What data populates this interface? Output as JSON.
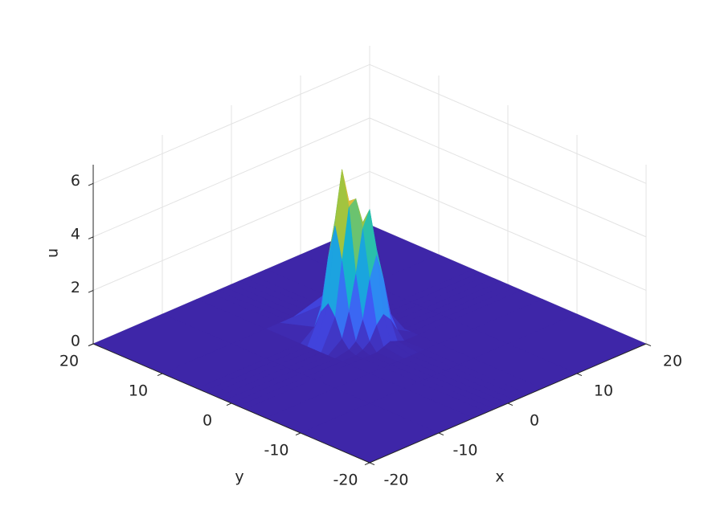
{
  "chart_data": {
    "type": "surface",
    "colormap": "parula",
    "grid": true,
    "xlabel": "x",
    "ylabel": "y",
    "zlabel": "u",
    "xlim": [
      -20,
      20
    ],
    "ylim": [
      -20,
      20
    ],
    "zlim": [
      0,
      6.7
    ],
    "xticks": [
      -20,
      -10,
      0,
      10,
      20
    ],
    "yticks": [
      -20,
      -10,
      0,
      10,
      20
    ],
    "zticks": [
      0,
      2,
      4,
      6
    ],
    "x": [
      -20,
      -10,
      -5,
      -3,
      -2,
      -1,
      0,
      1,
      2,
      3,
      5,
      10,
      20
    ],
    "y": [
      -20,
      -10,
      -5,
      -2,
      -1,
      0,
      1,
      2,
      3,
      4,
      5,
      10,
      20
    ],
    "z": [
      [
        0,
        0,
        0,
        0,
        0,
        0,
        0,
        0,
        0,
        0,
        0,
        0,
        0
      ],
      [
        0,
        0,
        0,
        0,
        0,
        0,
        0,
        0,
        0,
        0,
        0,
        0,
        0
      ],
      [
        0,
        0,
        0,
        0,
        0,
        0,
        0,
        0,
        0,
        0,
        0,
        0,
        0
      ],
      [
        0,
        0,
        0,
        0,
        0,
        0,
        0.1,
        0.2,
        0.1,
        0,
        0,
        0,
        0
      ],
      [
        0,
        0,
        0,
        0,
        0.1,
        0.3,
        0.8,
        1.1,
        0.8,
        0.3,
        0,
        0,
        0
      ],
      [
        0,
        0,
        0,
        0.1,
        0.3,
        1.0,
        2.4,
        3.2,
        2.2,
        0.8,
        0,
        0,
        0
      ],
      [
        0,
        0,
        0,
        0.4,
        1.3,
        2.6,
        4.2,
        4.8,
        3.2,
        1.1,
        0,
        0,
        0
      ],
      [
        0,
        0,
        0,
        1.1,
        3.1,
        5.0,
        5.2,
        4.2,
        2.4,
        0.8,
        0,
        0,
        0
      ],
      [
        0,
        0,
        0,
        1.5,
        4.3,
        6.3,
        5.0,
        2.6,
        1.0,
        0.3,
        0,
        0,
        0
      ],
      [
        0,
        0,
        0,
        1.1,
        3.0,
        4.3,
        3.1,
        1.3,
        0.3,
        0.1,
        0,
        0,
        0
      ],
      [
        0,
        0,
        0,
        0.4,
        1.1,
        1.5,
        1.1,
        0.4,
        0.1,
        0,
        0,
        0,
        0
      ],
      [
        0,
        0,
        0,
        0,
        0,
        0,
        0,
        0,
        0,
        0,
        0,
        0,
        0
      ],
      [
        0,
        0,
        0,
        0,
        0,
        0,
        0,
        0,
        0,
        0,
        0,
        0,
        0
      ]
    ]
  }
}
